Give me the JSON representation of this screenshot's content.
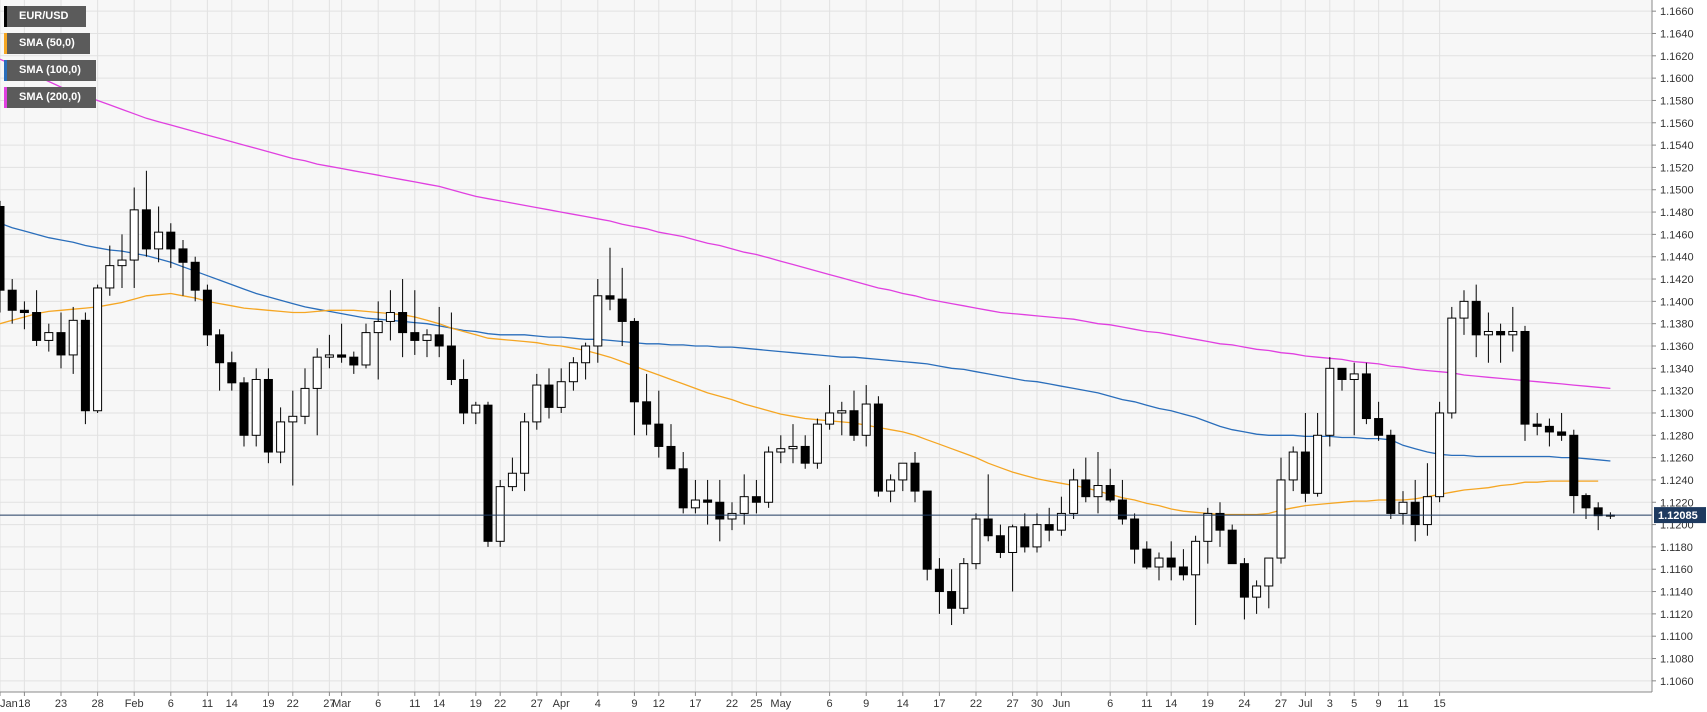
{
  "chart_data": {
    "type": "candlestick",
    "symbol": "EUR/USD",
    "last_price_label": "1.12085",
    "last_price": 1.12085,
    "y_axis": {
      "min": 1.105,
      "max": 1.167,
      "ticks": [
        "1.1060",
        "1.1080",
        "1.1100",
        "1.1120",
        "1.1140",
        "1.1160",
        "1.1180",
        "1.1200",
        "1.1220",
        "1.1240",
        "1.1260",
        "1.1280",
        "1.1300",
        "1.1320",
        "1.1340",
        "1.1360",
        "1.1380",
        "1.1400",
        "1.1420",
        "1.1440",
        "1.1460",
        "1.1480",
        "1.1500",
        "1.1520",
        "1.1540",
        "1.1560",
        "1.1580",
        "1.1600",
        "1.1620",
        "1.1640",
        "1.1660"
      ]
    },
    "x_axis": {
      "tick_labels": [
        "Jan",
        "18",
        "23",
        "28",
        "Feb",
        "6",
        "11",
        "14",
        "19",
        "22",
        "27",
        "Mar",
        "6",
        "11",
        "14",
        "19",
        "22",
        "27",
        "Apr",
        "4",
        "9",
        "12",
        "17",
        "22",
        "25",
        "May",
        "6",
        "9",
        "14",
        "17",
        "22",
        "27",
        "30",
        "Jun",
        "6",
        "11",
        "14",
        "19",
        "24",
        "27",
        "Jul",
        "3",
        "5",
        "9",
        "11",
        "15"
      ],
      "tick_index": [
        0,
        2,
        5,
        8,
        11,
        14,
        17,
        19,
        22,
        24,
        27,
        28,
        31,
        34,
        36,
        39,
        41,
        44,
        46,
        49,
        52,
        54,
        57,
        60,
        62,
        64,
        68,
        71,
        74,
        77,
        80,
        83,
        85,
        87,
        91,
        94,
        96,
        99,
        102,
        105,
        107,
        109,
        111,
        113,
        115,
        118
      ]
    },
    "legend": [
      {
        "label": "EUR/USD",
        "color": "#000000"
      },
      {
        "label": "SMA (50,0)",
        "color": "#f5a623"
      },
      {
        "label": "SMA (100,0)",
        "color": "#2a6ebb"
      },
      {
        "label": "SMA (200,0)",
        "color": "#e040e0"
      }
    ],
    "ohlc": [
      [
        1.1485,
        1.149,
        1.139,
        1.141
      ],
      [
        1.141,
        1.142,
        1.138,
        1.1392
      ],
      [
        1.1392,
        1.14,
        1.1375,
        1.139
      ],
      [
        1.139,
        1.141,
        1.136,
        1.1365
      ],
      [
        1.1365,
        1.138,
        1.1355,
        1.1372
      ],
      [
        1.1372,
        1.139,
        1.134,
        1.1352
      ],
      [
        1.1352,
        1.1395,
        1.1335,
        1.1383
      ],
      [
        1.1383,
        1.139,
        1.129,
        1.1302
      ],
      [
        1.1302,
        1.1415,
        1.13,
        1.1412
      ],
      [
        1.1412,
        1.145,
        1.1405,
        1.1432
      ],
      [
        1.1432,
        1.146,
        1.1412,
        1.1437
      ],
      [
        1.1437,
        1.1502,
        1.1412,
        1.1482
      ],
      [
        1.1482,
        1.1517,
        1.144,
        1.1447
      ],
      [
        1.1447,
        1.1485,
        1.1435,
        1.1462
      ],
      [
        1.1462,
        1.147,
        1.143,
        1.1447
      ],
      [
        1.1447,
        1.1455,
        1.1405,
        1.1435
      ],
      [
        1.1435,
        1.144,
        1.14,
        1.141
      ],
      [
        1.141,
        1.1415,
        1.136,
        1.137
      ],
      [
        1.137,
        1.1375,
        1.132,
        1.1345
      ],
      [
        1.1345,
        1.1355,
        1.132,
        1.1327
      ],
      [
        1.1327,
        1.1332,
        1.127,
        1.128
      ],
      [
        1.128,
        1.134,
        1.127,
        1.133
      ],
      [
        1.133,
        1.134,
        1.1255,
        1.1265
      ],
      [
        1.1265,
        1.1305,
        1.1255,
        1.1292
      ],
      [
        1.1292,
        1.132,
        1.1235,
        1.1297
      ],
      [
        1.1297,
        1.134,
        1.129,
        1.1322
      ],
      [
        1.1322,
        1.1358,
        1.128,
        1.135
      ],
      [
        1.135,
        1.137,
        1.134,
        1.1352
      ],
      [
        1.1352,
        1.138,
        1.1345,
        1.135
      ],
      [
        1.135,
        1.1355,
        1.1335,
        1.1343
      ],
      [
        1.1343,
        1.138,
        1.134,
        1.1372
      ],
      [
        1.1372,
        1.14,
        1.133,
        1.1382
      ],
      [
        1.1382,
        1.141,
        1.1365,
        1.139
      ],
      [
        1.139,
        1.142,
        1.135,
        1.1372
      ],
      [
        1.1372,
        1.141,
        1.1352,
        1.1365
      ],
      [
        1.1365,
        1.1375,
        1.135,
        1.137
      ],
      [
        1.137,
        1.1395,
        1.135,
        1.136
      ],
      [
        1.136,
        1.139,
        1.1325,
        1.133
      ],
      [
        1.133,
        1.1348,
        1.129,
        1.13
      ],
      [
        1.13,
        1.131,
        1.129,
        1.1307
      ],
      [
        1.1307,
        1.131,
        1.118,
        1.1185
      ],
      [
        1.1185,
        1.124,
        1.118,
        1.1234
      ],
      [
        1.1234,
        1.126,
        1.123,
        1.1246
      ],
      [
        1.1246,
        1.13,
        1.123,
        1.1292
      ],
      [
        1.1292,
        1.1335,
        1.1285,
        1.1325
      ],
      [
        1.1325,
        1.134,
        1.1295,
        1.1305
      ],
      [
        1.1305,
        1.134,
        1.13,
        1.1328
      ],
      [
        1.1328,
        1.135,
        1.132,
        1.1345
      ],
      [
        1.1345,
        1.1363,
        1.133,
        1.136
      ],
      [
        1.136,
        1.142,
        1.1345,
        1.1405
      ],
      [
        1.1405,
        1.1448,
        1.1392,
        1.1402
      ],
      [
        1.1402,
        1.143,
        1.136,
        1.1382
      ],
      [
        1.1382,
        1.1385,
        1.128,
        1.131
      ],
      [
        1.131,
        1.1335,
        1.128,
        1.129
      ],
      [
        1.129,
        1.132,
        1.126,
        1.127
      ],
      [
        1.127,
        1.129,
        1.125,
        1.125
      ],
      [
        1.125,
        1.1265,
        1.121,
        1.1215
      ],
      [
        1.1215,
        1.124,
        1.121,
        1.1222
      ],
      [
        1.1222,
        1.124,
        1.12,
        1.122
      ],
      [
        1.122,
        1.124,
        1.1185,
        1.1205
      ],
      [
        1.1205,
        1.122,
        1.1195,
        1.121
      ],
      [
        1.121,
        1.1245,
        1.12,
        1.1225
      ],
      [
        1.1225,
        1.124,
        1.121,
        1.122
      ],
      [
        1.122,
        1.127,
        1.1215,
        1.1265
      ],
      [
        1.1265,
        1.128,
        1.1255,
        1.1268
      ],
      [
        1.1268,
        1.129,
        1.1255,
        1.127
      ],
      [
        1.127,
        1.128,
        1.125,
        1.1255
      ],
      [
        1.1255,
        1.1295,
        1.125,
        1.129
      ],
      [
        1.129,
        1.1325,
        1.1285,
        1.13
      ],
      [
        1.13,
        1.131,
        1.128,
        1.1302
      ],
      [
        1.1302,
        1.132,
        1.1275,
        1.128
      ],
      [
        1.128,
        1.1325,
        1.127,
        1.1308
      ],
      [
        1.1308,
        1.1315,
        1.1225,
        1.123
      ],
      [
        1.123,
        1.1245,
        1.122,
        1.124
      ],
      [
        1.124,
        1.1255,
        1.123,
        1.1255
      ],
      [
        1.1255,
        1.1265,
        1.122,
        1.123
      ],
      [
        1.123,
        1.123,
        1.115,
        1.116
      ],
      [
        1.116,
        1.117,
        1.112,
        1.114
      ],
      [
        1.114,
        1.116,
        1.111,
        1.1125
      ],
      [
        1.1125,
        1.117,
        1.112,
        1.1165
      ],
      [
        1.1165,
        1.121,
        1.116,
        1.1205
      ],
      [
        1.1205,
        1.1245,
        1.1185,
        1.119
      ],
      [
        1.119,
        1.12,
        1.117,
        1.1175
      ],
      [
        1.1175,
        1.12,
        1.114,
        1.1198
      ],
      [
        1.1198,
        1.121,
        1.1175,
        1.118
      ],
      [
        1.118,
        1.121,
        1.1175,
        1.12
      ],
      [
        1.12,
        1.1215,
        1.1185,
        1.1195
      ],
      [
        1.1195,
        1.1225,
        1.119,
        1.121
      ],
      [
        1.121,
        1.125,
        1.1205,
        1.124
      ],
      [
        1.124,
        1.126,
        1.122,
        1.1225
      ],
      [
        1.1225,
        1.1265,
        1.121,
        1.1235
      ],
      [
        1.1235,
        1.125,
        1.122,
        1.1222
      ],
      [
        1.1222,
        1.124,
        1.12,
        1.1205
      ],
      [
        1.1205,
        1.121,
        1.1165,
        1.1178
      ],
      [
        1.1178,
        1.1185,
        1.116,
        1.1162
      ],
      [
        1.1162,
        1.1175,
        1.115,
        1.117
      ],
      [
        1.117,
        1.1185,
        1.115,
        1.1162
      ],
      [
        1.1162,
        1.1178,
        1.115,
        1.1155
      ],
      [
        1.1155,
        1.119,
        1.111,
        1.1185
      ],
      [
        1.1185,
        1.1215,
        1.1165,
        1.121
      ],
      [
        1.121,
        1.122,
        1.118,
        1.1195
      ],
      [
        1.1195,
        1.12,
        1.1165,
        1.1165
      ],
      [
        1.1165,
        1.117,
        1.1115,
        1.1135
      ],
      [
        1.1135,
        1.115,
        1.112,
        1.1145
      ],
      [
        1.1145,
        1.117,
        1.1125,
        1.117
      ],
      [
        1.117,
        1.126,
        1.1165,
        1.124
      ],
      [
        1.124,
        1.127,
        1.123,
        1.1265
      ],
      [
        1.1265,
        1.13,
        1.122,
        1.1228
      ],
      [
        1.1228,
        1.13,
        1.1225,
        1.128
      ],
      [
        1.128,
        1.135,
        1.127,
        1.134
      ],
      [
        1.134,
        1.134,
        1.132,
        1.133
      ],
      [
        1.133,
        1.1345,
        1.128,
        1.1335
      ],
      [
        1.1335,
        1.1345,
        1.129,
        1.1295
      ],
      [
        1.1295,
        1.131,
        1.1275,
        1.128
      ],
      [
        1.128,
        1.1285,
        1.1205,
        1.121
      ],
      [
        1.121,
        1.123,
        1.12,
        1.122
      ],
      [
        1.122,
        1.124,
        1.1185,
        1.12
      ],
      [
        1.12,
        1.1255,
        1.119,
        1.1225
      ],
      [
        1.1225,
        1.131,
        1.122,
        1.13
      ],
      [
        1.13,
        1.1395,
        1.1295,
        1.1385
      ],
      [
        1.1385,
        1.141,
        1.137,
        1.14
      ],
      [
        1.14,
        1.1415,
        1.135,
        1.137
      ],
      [
        1.137,
        1.139,
        1.1345,
        1.1373
      ],
      [
        1.1373,
        1.138,
        1.1345,
        1.137
      ],
      [
        1.137,
        1.1395,
        1.1355,
        1.1373
      ],
      [
        1.1373,
        1.1378,
        1.1275,
        1.129
      ],
      [
        1.129,
        1.13,
        1.128,
        1.1288
      ],
      [
        1.1288,
        1.1295,
        1.127,
        1.1283
      ],
      [
        1.1283,
        1.13,
        1.1275,
        1.128
      ],
      [
        1.128,
        1.1285,
        1.121,
        1.1226
      ],
      [
        1.1226,
        1.1228,
        1.1205,
        1.1215
      ],
      [
        1.1215,
        1.122,
        1.1195,
        1.1208
      ],
      [
        1.1208,
        1.1211,
        1.1205,
        1.12085
      ]
    ],
    "sma50": [
      1.138,
      1.1383,
      1.1386,
      1.1389,
      1.1391,
      1.1392,
      1.1393,
      1.1394,
      1.1395,
      1.1397,
      1.1399,
      1.1402,
      1.1405,
      1.1406,
      1.1407,
      1.1405,
      1.1403,
      1.14,
      1.1398,
      1.1396,
      1.1394,
      1.1393,
      1.1392,
      1.1391,
      1.139,
      1.139,
      1.1391,
      1.1392,
      1.1392,
      1.1392,
      1.1391,
      1.139,
      1.1389,
      1.1388,
      1.1386,
      1.1383,
      1.138,
      1.1376,
      1.1373,
      1.137,
      1.1367,
      1.1366,
      1.1365,
      1.1364,
      1.1363,
      1.1361,
      1.136,
      1.1358,
      1.1356,
      1.1353,
      1.135,
      1.1346,
      1.1342,
      1.1338,
      1.1334,
      1.133,
      1.1326,
      1.1322,
      1.1318,
      1.1315,
      1.1312,
      1.1308,
      1.1305,
      1.1302,
      1.1299,
      1.1297,
      1.1295,
      1.1294,
      1.1293,
      1.1292,
      1.1291,
      1.1289,
      1.1287,
      1.1285,
      1.1283,
      1.128,
      1.1276,
      1.1272,
      1.1268,
      1.1264,
      1.126,
      1.1255,
      1.1251,
      1.1247,
      1.1244,
      1.1241,
      1.1239,
      1.1237,
      1.1235,
      1.1233,
      1.123,
      1.1227,
      1.1224,
      1.1222,
      1.1219,
      1.1217,
      1.1214,
      1.1212,
      1.1211,
      1.121,
      1.1209,
      1.1209,
      1.1209,
      1.1209,
      1.121,
      1.1213,
      1.1215,
      1.1217,
      1.1218,
      1.1219,
      1.122,
      1.1221,
      1.1221,
      1.1222,
      1.1222,
      1.1222,
      1.1223,
      1.1225,
      1.1227,
      1.1229,
      1.1231,
      1.1232,
      1.1233,
      1.1235,
      1.1236,
      1.1238,
      1.1238,
      1.1239,
      1.1239,
      1.1239,
      1.1239,
      1.1239
    ],
    "sma100": [
      1.147,
      1.1466,
      1.1463,
      1.146,
      1.1457,
      1.1455,
      1.1453,
      1.145,
      1.1448,
      1.1446,
      1.1445,
      1.1443,
      1.1441,
      1.1438,
      1.1435,
      1.1431,
      1.1427,
      1.1423,
      1.1419,
      1.1415,
      1.1411,
      1.1407,
      1.1404,
      1.1401,
      1.1398,
      1.1395,
      1.1393,
      1.1391,
      1.1389,
      1.1387,
      1.1385,
      1.1384,
      1.1383,
      1.1382,
      1.1381,
      1.138,
      1.1378,
      1.1376,
      1.1374,
      1.1373,
      1.1371,
      1.137,
      1.137,
      1.137,
      1.1369,
      1.1368,
      1.1368,
      1.1367,
      1.1366,
      1.1366,
      1.1365,
      1.1364,
      1.1363,
      1.1362,
      1.1362,
      1.1361,
      1.1361,
      1.136,
      1.136,
      1.1359,
      1.1359,
      1.1358,
      1.1357,
      1.1356,
      1.1355,
      1.1354,
      1.1353,
      1.1352,
      1.1351,
      1.135,
      1.135,
      1.1349,
      1.1348,
      1.1347,
      1.1346,
      1.1345,
      1.1344,
      1.1342,
      1.134,
      1.1339,
      1.1337,
      1.1335,
      1.1333,
      1.1331,
      1.1329,
      1.1328,
      1.1326,
      1.1324,
      1.1322,
      1.132,
      1.1318,
      1.1315,
      1.1312,
      1.131,
      1.1307,
      1.1304,
      1.1302,
      1.1299,
      1.1296,
      1.1292,
      1.1288,
      1.1285,
      1.1283,
      1.1281,
      1.128,
      1.128,
      1.128,
      1.1279,
      1.1279,
      1.1279,
      1.1278,
      1.1278,
      1.1277,
      1.1277,
      1.1276,
      1.1271,
      1.1268,
      1.1265,
      1.1263,
      1.1262,
      1.1262,
      1.1261,
      1.1261,
      1.1261,
      1.1261,
      1.1261,
      1.1261,
      1.1261,
      1.126,
      1.126,
      1.1259,
      1.1258,
      1.1257
    ],
    "sma200_start_index": 0,
    "sma200": [
      1.1617,
      1.1612,
      1.1607,
      1.1602,
      1.1597,
      1.1592,
      1.1588,
      1.1584,
      1.158,
      1.1576,
      1.1572,
      1.1568,
      1.1564,
      1.1561,
      1.1558,
      1.1555,
      1.1552,
      1.1549,
      1.1546,
      1.1543,
      1.154,
      1.1537,
      1.1534,
      1.1531,
      1.1528,
      1.1526,
      1.1523,
      1.1521,
      1.1519,
      1.1517,
      1.1515,
      1.1513,
      1.1511,
      1.1509,
      1.1507,
      1.1505,
      1.1503,
      1.15,
      1.1497,
      1.1494,
      1.1492,
      1.149,
      1.1488,
      1.1486,
      1.1484,
      1.1482,
      1.148,
      1.1478,
      1.1476,
      1.1474,
      1.1472,
      1.1469,
      1.1467,
      1.1465,
      1.1462,
      1.146,
      1.1458,
      1.1455,
      1.1452,
      1.145,
      1.1447,
      1.1444,
      1.1442,
      1.1439,
      1.1436,
      1.1433,
      1.143,
      1.1427,
      1.1424,
      1.1421,
      1.1418,
      1.1415,
      1.1412,
      1.141,
      1.1407,
      1.1405,
      1.1402,
      1.14,
      1.1398,
      1.1396,
      1.1394,
      1.1392,
      1.139,
      1.1389,
      1.1388,
      1.1387,
      1.1386,
      1.1385,
      1.1384,
      1.1382,
      1.138,
      1.1379,
      1.1377,
      1.1375,
      1.1373,
      1.1372,
      1.137,
      1.1368,
      1.1366,
      1.1364,
      1.1362,
      1.1361,
      1.1359,
      1.1357,
      1.1356,
      1.1354,
      1.1353,
      1.1351,
      1.135,
      1.1349,
      1.1348,
      1.1346,
      1.1345,
      1.1344,
      1.1342,
      1.1341,
      1.1339,
      1.1338,
      1.1337,
      1.1336,
      1.1334,
      1.1333,
      1.1332,
      1.1331,
      1.133,
      1.1329,
      1.1328,
      1.1327,
      1.1326,
      1.1325,
      1.1324,
      1.1323,
      1.1322
    ]
  }
}
